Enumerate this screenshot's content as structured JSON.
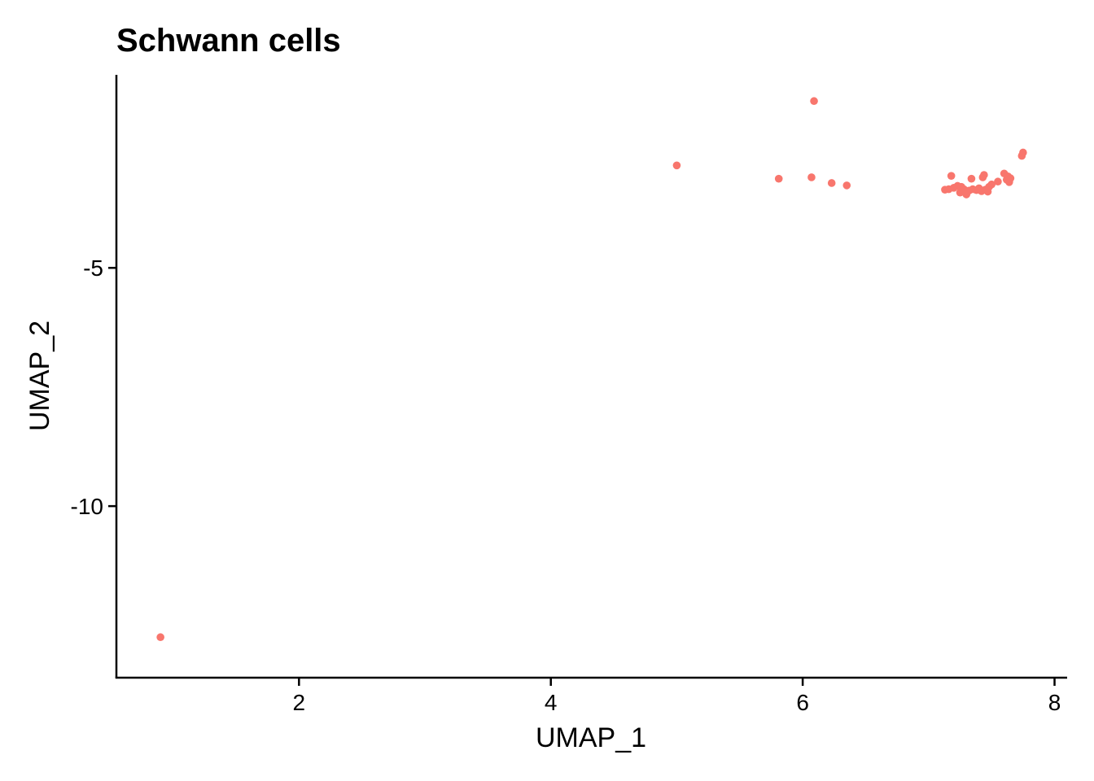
{
  "chart_data": {
    "type": "scatter",
    "title": "Schwann cells",
    "xlabel": "UMAP_1",
    "ylabel": "UMAP_2",
    "xlim": [
      0.55,
      8.1
    ],
    "ylim": [
      -13.6,
      -0.95
    ],
    "xticks": [
      2,
      4,
      6,
      8
    ],
    "yticks": [
      -5,
      -10
    ],
    "grid": false,
    "legend": "none",
    "point_color": "#F8766D",
    "points": [
      {
        "x": 0.9,
        "y": -12.75
      },
      {
        "x": 5.0,
        "y": -2.85
      },
      {
        "x": 5.81,
        "y": -3.13
      },
      {
        "x": 6.07,
        "y": -3.1
      },
      {
        "x": 6.09,
        "y": -1.5
      },
      {
        "x": 6.23,
        "y": -3.22
      },
      {
        "x": 6.35,
        "y": -3.27
      },
      {
        "x": 7.13,
        "y": -3.36
      },
      {
        "x": 7.16,
        "y": -3.35
      },
      {
        "x": 7.18,
        "y": -3.07
      },
      {
        "x": 7.2,
        "y": -3.32
      },
      {
        "x": 7.23,
        "y": -3.28
      },
      {
        "x": 7.25,
        "y": -3.42
      },
      {
        "x": 7.26,
        "y": -3.3
      },
      {
        "x": 7.28,
        "y": -3.35
      },
      {
        "x": 7.3,
        "y": -3.46
      },
      {
        "x": 7.32,
        "y": -3.38
      },
      {
        "x": 7.34,
        "y": -3.13
      },
      {
        "x": 7.35,
        "y": -3.35
      },
      {
        "x": 7.38,
        "y": -3.37
      },
      {
        "x": 7.4,
        "y": -3.33
      },
      {
        "x": 7.42,
        "y": -3.39
      },
      {
        "x": 7.43,
        "y": -3.1
      },
      {
        "x": 7.44,
        "y": -3.05
      },
      {
        "x": 7.45,
        "y": -3.36
      },
      {
        "x": 7.47,
        "y": -3.4
      },
      {
        "x": 7.48,
        "y": -3.3
      },
      {
        "x": 7.5,
        "y": -3.25
      },
      {
        "x": 7.55,
        "y": -3.19
      },
      {
        "x": 7.6,
        "y": -3.02
      },
      {
        "x": 7.62,
        "y": -3.15
      },
      {
        "x": 7.63,
        "y": -3.08
      },
      {
        "x": 7.64,
        "y": -3.2
      },
      {
        "x": 7.65,
        "y": -3.12
      },
      {
        "x": 7.74,
        "y": -2.65
      },
      {
        "x": 7.75,
        "y": -2.58
      }
    ]
  }
}
